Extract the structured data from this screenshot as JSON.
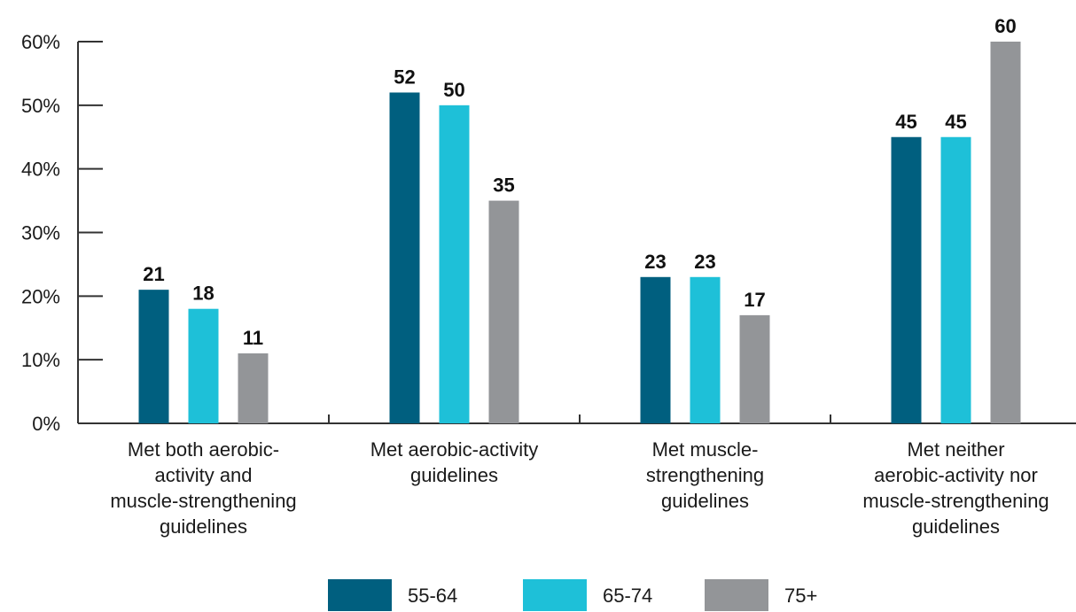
{
  "chart_data": {
    "type": "bar",
    "categories": [
      [
        "Met both aerobic-",
        "activity and",
        "muscle-strengthening",
        "guidelines"
      ],
      [
        "Met aerobic-activity",
        "guidelines"
      ],
      [
        "Met muscle-",
        "strengthening",
        "guidelines"
      ],
      [
        "Met neither",
        "aerobic-activity nor",
        "muscle-strengthening",
        "guidelines"
      ]
    ],
    "series": [
      {
        "name": "55-64",
        "color": "#005f7f",
        "values": [
          21,
          52,
          23,
          45
        ]
      },
      {
        "name": "65-74",
        "color": "#1ec0d8",
        "values": [
          18,
          50,
          23,
          45
        ]
      },
      {
        "name": "75+",
        "color": "#939598",
        "values": [
          11,
          35,
          17,
          60
        ]
      }
    ],
    "ylim": [
      0,
      60
    ],
    "yticks": [
      0,
      10,
      20,
      30,
      40,
      50,
      60
    ],
    "ytick_labels": [
      "0%",
      "10%",
      "20%",
      "30%",
      "40%",
      "50%",
      "60%"
    ],
    "legend_position": "bottom-center",
    "grid": false
  }
}
